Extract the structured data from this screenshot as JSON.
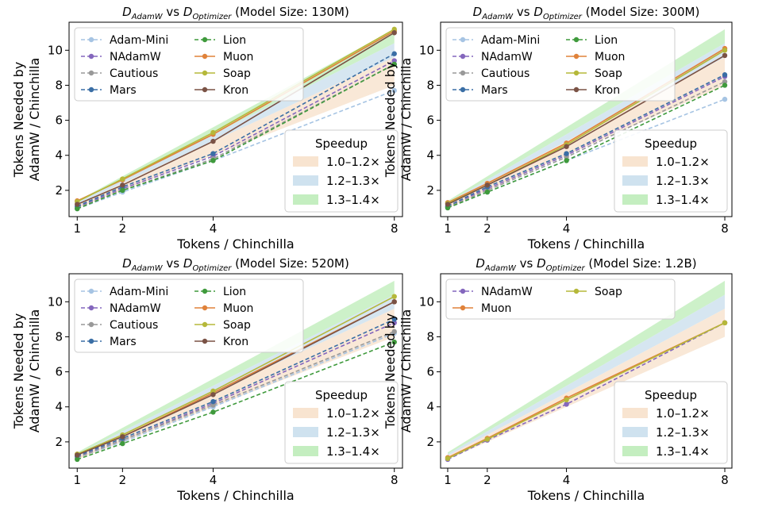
{
  "figure": {
    "ylabel_line1": "Tokens Needed by",
    "ylabel_line2": "AdamW / Chinchilla",
    "xlabel": "Tokens / Chinchilla",
    "speedup_title": "Speedup",
    "bands": [
      {
        "label": "1.0–1.2×",
        "lo": 1.0,
        "hi": 1.2,
        "color": "#f8e4d0"
      },
      {
        "label": "1.2–1.3×",
        "lo": 1.2,
        "hi": 1.3,
        "color": "#cfe2ef"
      },
      {
        "label": "1.3–1.4×",
        "lo": 1.3,
        "hi": 1.4,
        "color": "#c4eec0"
      }
    ],
    "title_prefix": "D",
    "title_sub1": "AdamW",
    "title_vs": "vs",
    "title_sub2": "Optimizer"
  },
  "colors": {
    "Adam-Mini": "#a6c4e3",
    "NAdamW": "#8467bd",
    "Cautious": "#999999",
    "Mars": "#3a6ea5",
    "Lion": "#3f9a3c",
    "Muon": "#e0823a",
    "Soap": "#b5b83a",
    "Kron": "#7a5245"
  },
  "chart_data": [
    {
      "type": "line",
      "title": "(Model Size: 130M)",
      "x": [
        1,
        2,
        4,
        8
      ],
      "xticks": [
        1,
        2,
        4,
        8
      ],
      "yticks": [
        2,
        4,
        6,
        8,
        10
      ],
      "ylim": [
        0.5,
        11.6
      ],
      "legend_cols": 2,
      "series": [
        {
          "name": "Adam-Mini",
          "dashed": true,
          "values": [
            0.95,
            1.9,
            3.7,
            7.7
          ]
        },
        {
          "name": "NAdamW",
          "dashed": true,
          "values": [
            1.05,
            2.1,
            3.95,
            9.4
          ]
        },
        {
          "name": "Cautious",
          "dashed": true,
          "values": [
            1.0,
            2.0,
            3.8,
            9.2
          ]
        },
        {
          "name": "Mars",
          "dashed": true,
          "values": [
            1.1,
            2.2,
            4.1,
            9.8
          ]
        },
        {
          "name": "Lion",
          "dashed": true,
          "values": [
            0.95,
            2.0,
            3.7,
            9.2
          ]
        },
        {
          "name": "Muon",
          "dashed": false,
          "values": [
            1.4,
            2.6,
            5.2,
            11.1
          ]
        },
        {
          "name": "Soap",
          "dashed": false,
          "values": [
            1.35,
            2.65,
            5.3,
            11.2
          ]
        },
        {
          "name": "Kron",
          "dashed": false,
          "values": [
            1.2,
            2.3,
            4.8,
            11.0
          ]
        }
      ]
    },
    {
      "type": "line",
      "title": "(Model Size: 300M)",
      "x": [
        1,
        2,
        4,
        8
      ],
      "xticks": [
        1,
        2,
        4,
        8
      ],
      "yticks": [
        2,
        4,
        6,
        8,
        10
      ],
      "ylim": [
        0.5,
        11.6
      ],
      "legend_cols": 2,
      "series": [
        {
          "name": "Adam-Mini",
          "dashed": true,
          "values": [
            1.0,
            1.9,
            3.7,
            7.2
          ]
        },
        {
          "name": "NAdamW",
          "dashed": true,
          "values": [
            1.1,
            2.1,
            4.0,
            8.5
          ]
        },
        {
          "name": "Cautious",
          "dashed": true,
          "values": [
            1.05,
            2.0,
            3.9,
            8.2
          ]
        },
        {
          "name": "Mars",
          "dashed": true,
          "values": [
            1.1,
            2.2,
            4.1,
            8.6
          ]
        },
        {
          "name": "Lion",
          "dashed": true,
          "values": [
            1.0,
            1.9,
            3.7,
            8.0
          ]
        },
        {
          "name": "Muon",
          "dashed": false,
          "values": [
            1.3,
            2.4,
            4.7,
            10.1
          ]
        },
        {
          "name": "Soap",
          "dashed": false,
          "values": [
            1.25,
            2.3,
            4.6,
            10.0
          ]
        },
        {
          "name": "Kron",
          "dashed": false,
          "values": [
            1.2,
            2.3,
            4.5,
            9.7
          ]
        }
      ]
    },
    {
      "type": "line",
      "title": "(Model Size: 520M)",
      "x": [
        1,
        2,
        4,
        8
      ],
      "xticks": [
        1,
        2,
        4,
        8
      ],
      "yticks": [
        2,
        4,
        6,
        8,
        10
      ],
      "ylim": [
        0.5,
        11.6
      ],
      "legend_cols": 2,
      "series": [
        {
          "name": "Adam-Mini",
          "dashed": true,
          "values": [
            1.1,
            2.0,
            4.0,
            8.2
          ]
        },
        {
          "name": "NAdamW",
          "dashed": true,
          "values": [
            1.15,
            2.1,
            4.2,
            8.8
          ]
        },
        {
          "name": "Cautious",
          "dashed": true,
          "values": [
            1.1,
            2.1,
            4.1,
            8.3
          ]
        },
        {
          "name": "Mars",
          "dashed": true,
          "values": [
            1.2,
            2.2,
            4.3,
            9.0
          ]
        },
        {
          "name": "Lion",
          "dashed": true,
          "values": [
            1.0,
            1.9,
            3.7,
            7.7
          ]
        },
        {
          "name": "Muon",
          "dashed": false,
          "values": [
            1.3,
            2.3,
            4.8,
            10.0
          ]
        },
        {
          "name": "Soap",
          "dashed": false,
          "values": [
            1.3,
            2.4,
            4.9,
            10.3
          ]
        },
        {
          "name": "Kron",
          "dashed": false,
          "values": [
            1.25,
            2.3,
            4.7,
            10.0
          ]
        }
      ]
    },
    {
      "type": "line",
      "title": "(Model Size: 1.2B)",
      "x": [
        1,
        2,
        4,
        8
      ],
      "xticks": [
        1,
        2,
        4,
        8
      ],
      "yticks": [
        2,
        4,
        6,
        8,
        10
      ],
      "ylim": [
        0.5,
        11.6
      ],
      "legend_cols": 2,
      "series": [
        {
          "name": "NAdamW",
          "dashed": true,
          "values": [
            1.0,
            2.1,
            4.15,
            8.8
          ]
        },
        {
          "name": "Muon",
          "dashed": false,
          "values": [
            1.1,
            2.2,
            4.5,
            8.8
          ]
        },
        {
          "name": "Soap",
          "dashed": false,
          "values": [
            1.05,
            2.15,
            4.4,
            8.8
          ]
        }
      ]
    }
  ]
}
